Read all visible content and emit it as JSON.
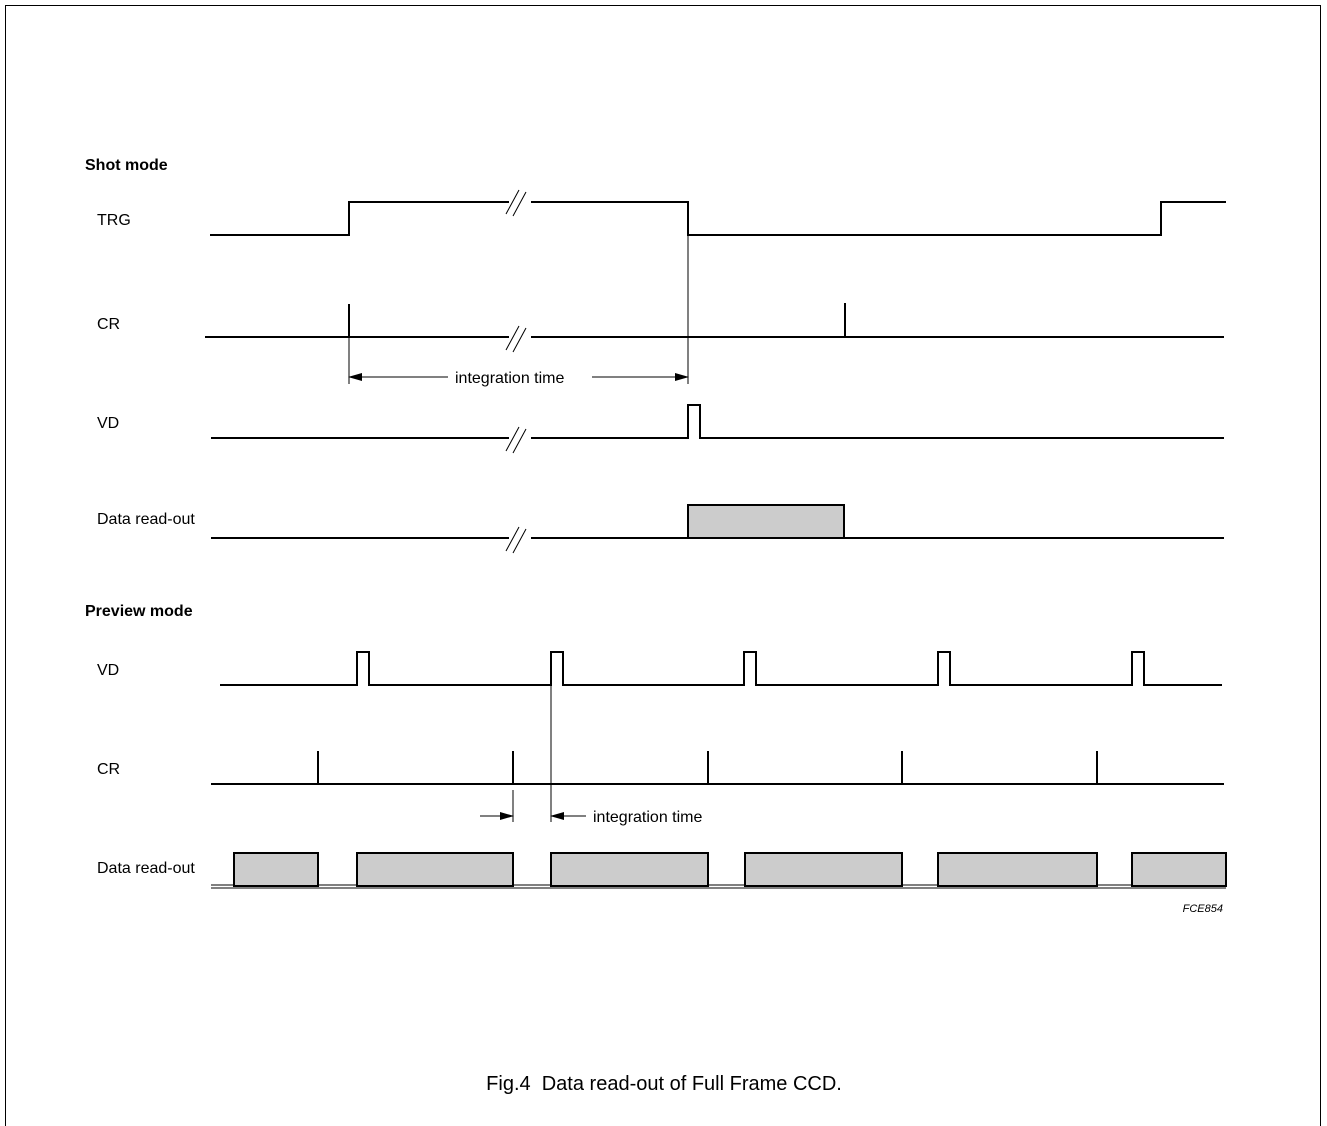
{
  "figure": {
    "sections": {
      "shot_mode": "Shot mode",
      "preview_mode": "Preview mode"
    },
    "shot_labels": {
      "trg": "TRG",
      "cr": "CR",
      "vd": "VD",
      "data": "Data read-out"
    },
    "preview_labels": {
      "vd": "VD",
      "cr": "CR",
      "data": "Data read-out"
    },
    "notes": {
      "shot_integration": "integration time",
      "preview_integration": "integration time"
    },
    "reference": "FCE854",
    "caption": "Fig.4  Data read-out of Full Frame CCD."
  }
}
